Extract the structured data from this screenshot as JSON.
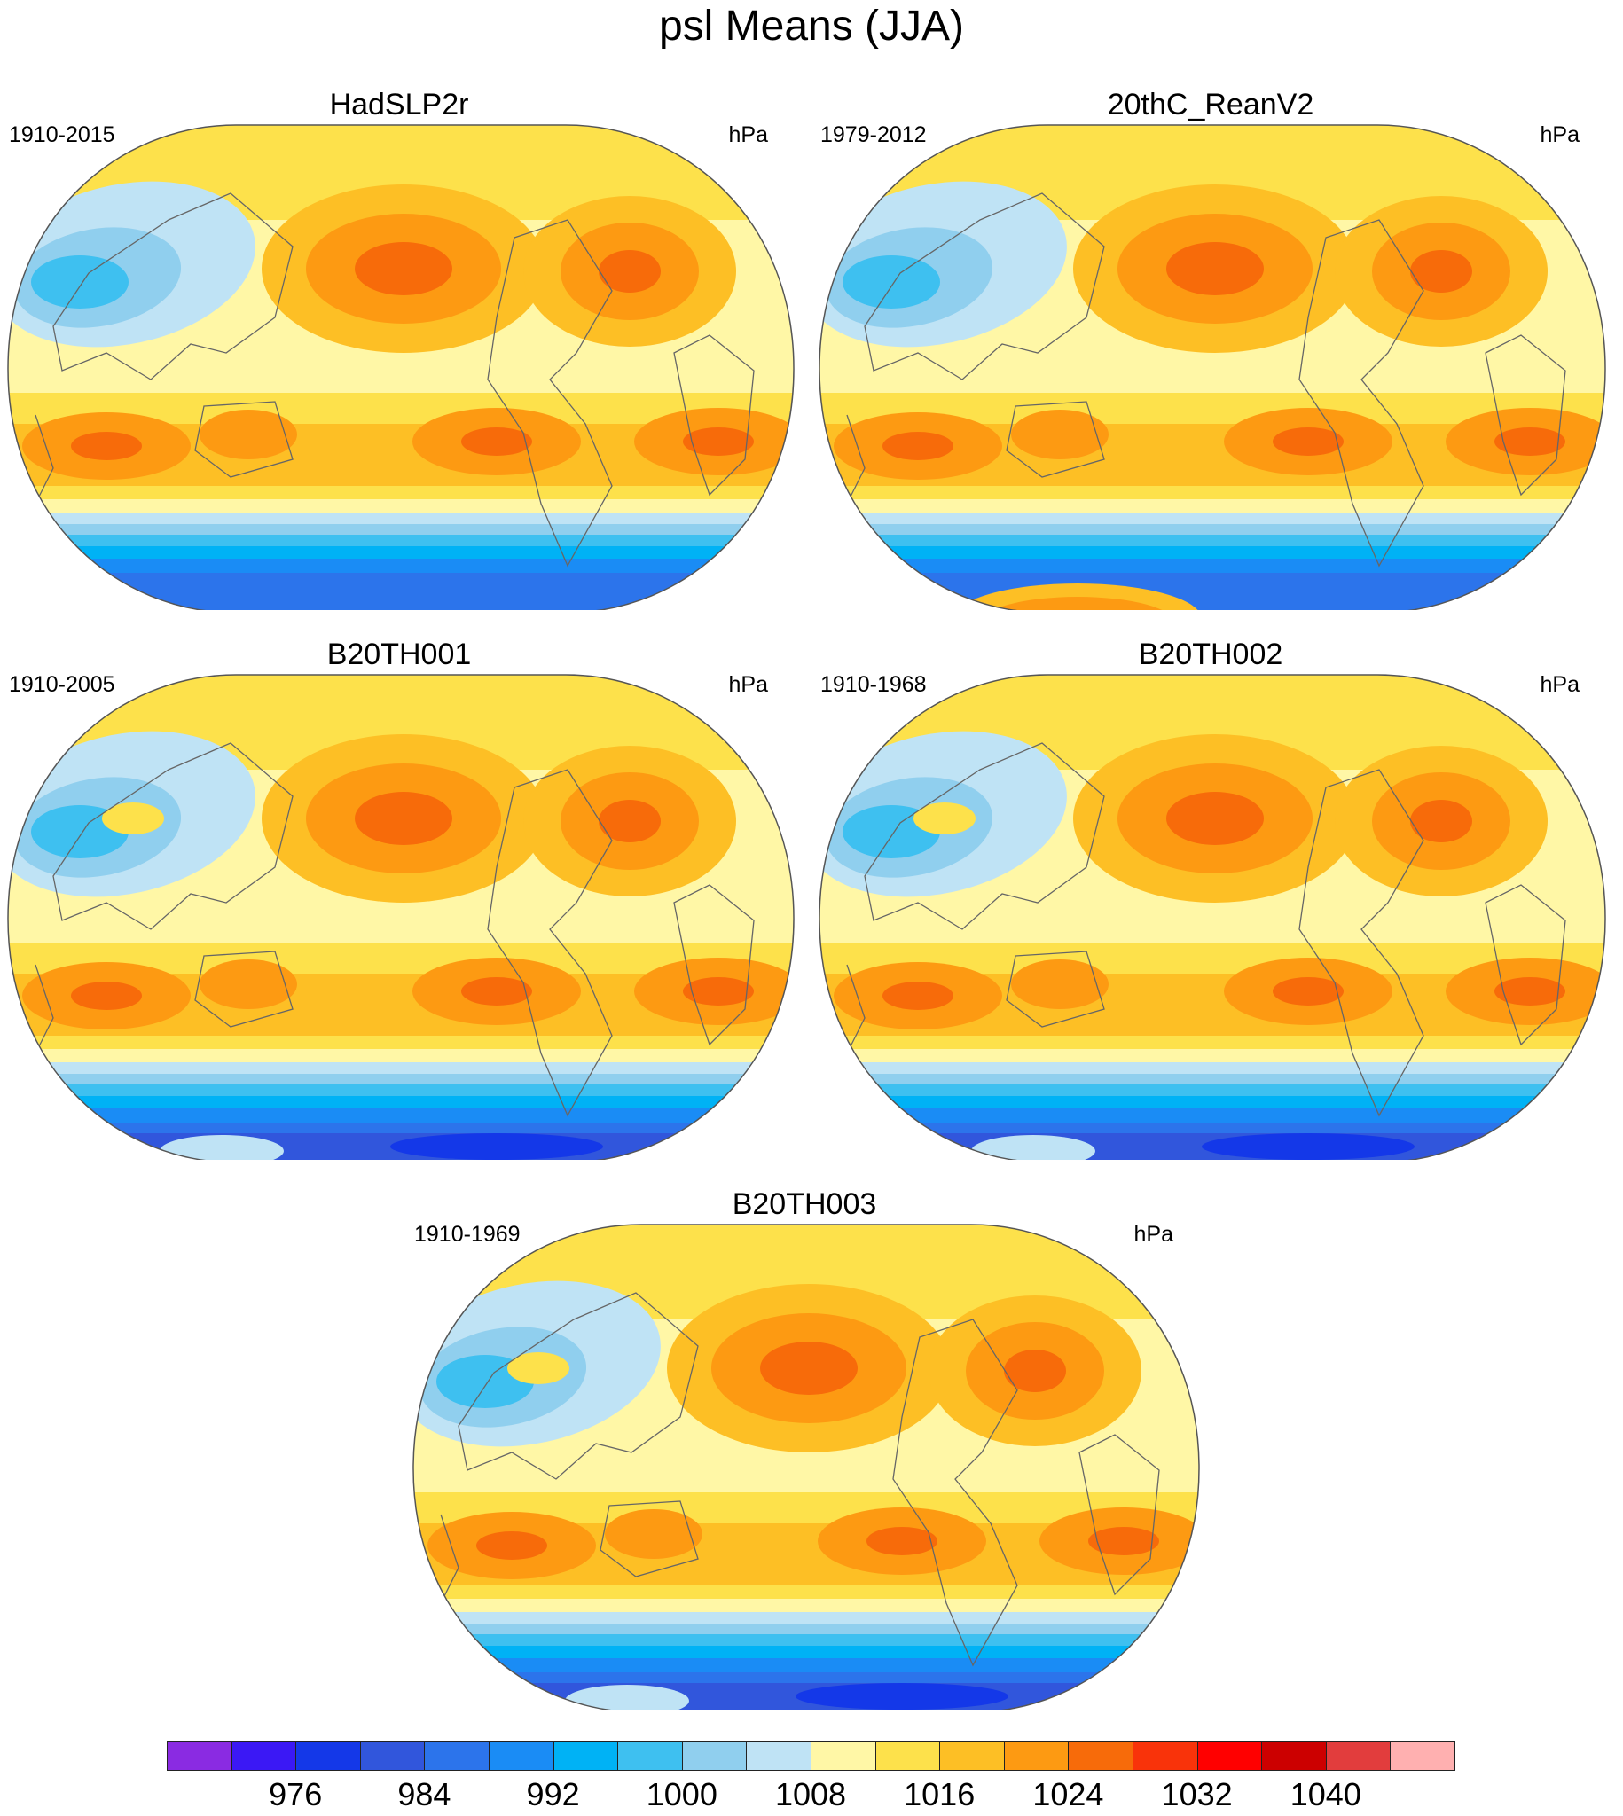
{
  "title": "psl Means (JJA)",
  "panels": [
    {
      "name": "HadSLP2r",
      "years": "1910-2015",
      "units": "hPa",
      "antarctic_high": false,
      "tibet": false
    },
    {
      "name": "20thC_ReanV2",
      "years": "1979-2012",
      "units": "hPa",
      "antarctic_high": true,
      "tibet": false
    },
    {
      "name": "B20TH001",
      "years": "1910-2005",
      "units": "hPa",
      "antarctic_high": false,
      "tibet": true
    },
    {
      "name": "B20TH002",
      "years": "1910-1968",
      "units": "hPa",
      "antarctic_high": false,
      "tibet": true
    },
    {
      "name": "B20TH003",
      "years": "1910-1969",
      "units": "hPa",
      "antarctic_high": false,
      "tibet": true
    }
  ],
  "colorbar": {
    "colors": [
      "#8a2be2",
      "#3b18f5",
      "#1438e8",
      "#3156dc",
      "#2c74eb",
      "#1a8cf5",
      "#00b2f5",
      "#3ec0f0",
      "#90cfee",
      "#bfe3f5",
      "#fff7a6",
      "#fde14b",
      "#fdbf25",
      "#fd9a12",
      "#f76b0a",
      "#f9330a",
      "#ff0000",
      "#cc0000",
      "#e23d3d",
      "#ffb0b0"
    ],
    "labels": [
      "976",
      "984",
      "992",
      "1000",
      "1008",
      "1016",
      "1024",
      "1032",
      "1040"
    ]
  }
}
